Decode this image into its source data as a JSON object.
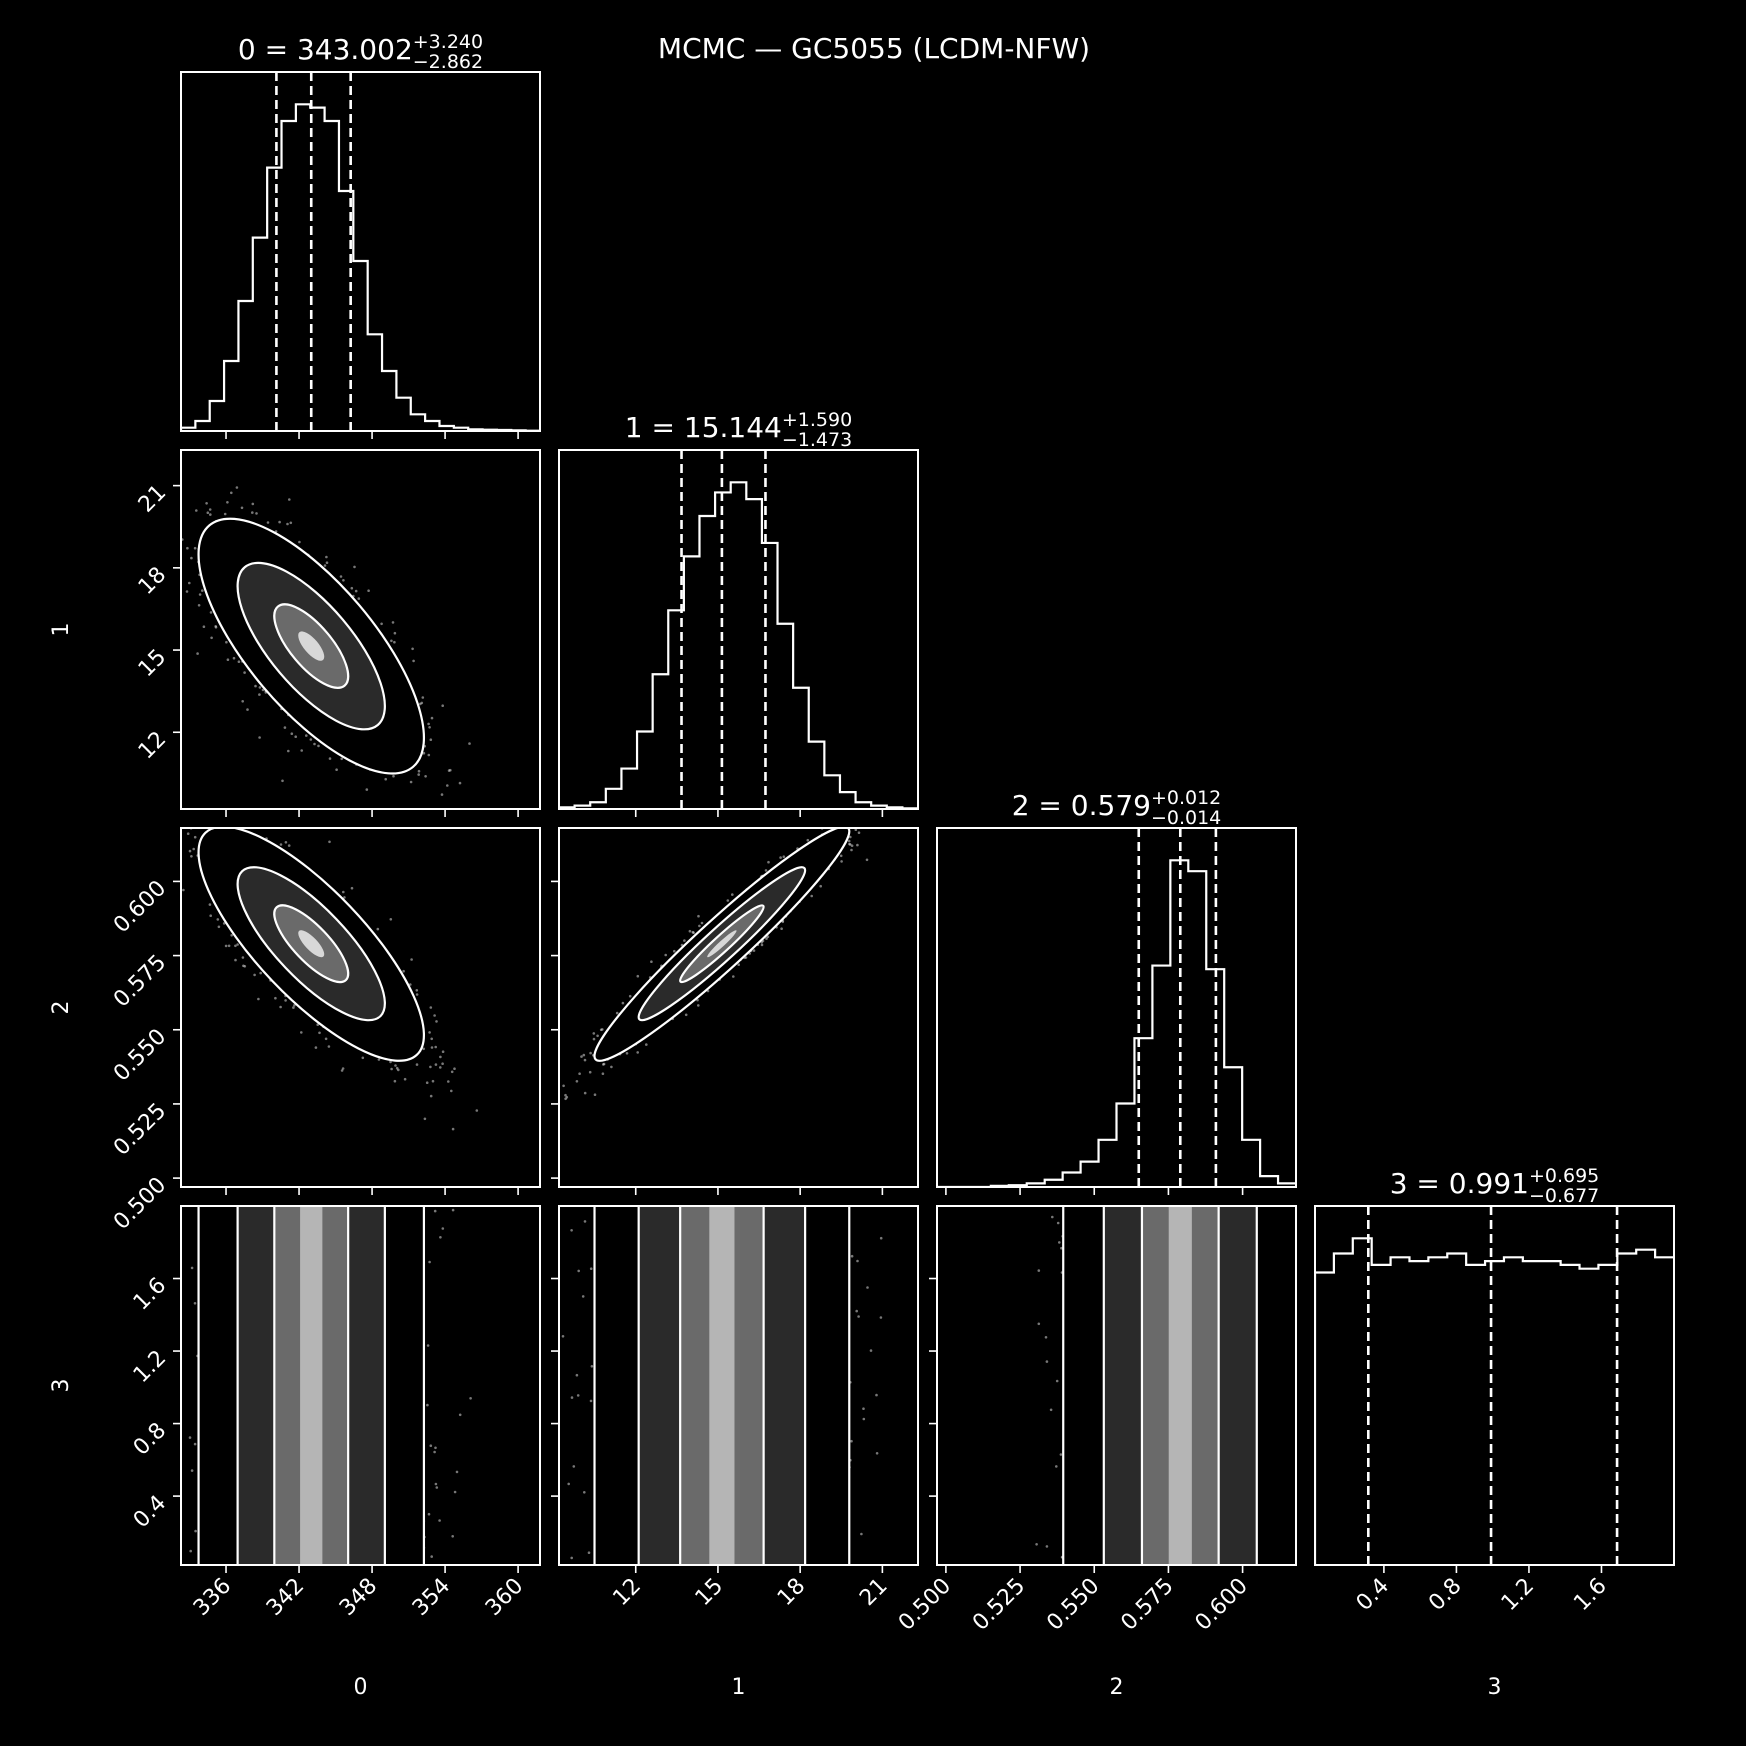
{
  "figure": {
    "title": "MCMC — GC5055 (LCDM-NFW)",
    "background": "#000000",
    "foreground": "#ffffff"
  },
  "chart_data": {
    "type": "corner",
    "title": "MCMC — GC5055 (LCDM-NFW)",
    "parameters": [
      {
        "label": "0",
        "median": 343.002,
        "plus": 3.24,
        "minus": 2.862,
        "median_text": "343.002",
        "plus_text": "+3.240",
        "minus_text": "−2.862",
        "range": [
          332.3,
          361.8
        ],
        "ticks": [
          336,
          342,
          348,
          354,
          360
        ],
        "tick_labels": [
          "336",
          "342",
          "348",
          "354",
          "360"
        ],
        "quantiles": [
          340.14,
          343.002,
          346.242
        ],
        "hist": [
          0.01,
          0.03,
          0.09,
          0.21,
          0.39,
          0.58,
          0.79,
          0.93,
          0.98,
          0.97,
          0.93,
          0.72,
          0.51,
          0.29,
          0.18,
          0.1,
          0.05,
          0.03,
          0.015,
          0.01,
          0.005,
          0.004,
          0.003,
          0.002,
          0.001
        ]
      },
      {
        "label": "1",
        "median": 15.144,
        "plus": 1.59,
        "minus": 1.473,
        "median_text": "15.144",
        "plus_text": "+1.590",
        "minus_text": "−1.473",
        "range": [
          9.2,
          22.3
        ],
        "ticks": [
          12,
          15,
          18,
          21
        ],
        "tick_labels": [
          "12",
          "15",
          "18",
          "21"
        ],
        "quantiles": [
          13.671,
          15.144,
          16.734
        ],
        "hist": [
          0.005,
          0.01,
          0.02,
          0.06,
          0.12,
          0.23,
          0.4,
          0.59,
          0.75,
          0.87,
          0.94,
          0.97,
          0.92,
          0.79,
          0.55,
          0.36,
          0.2,
          0.1,
          0.05,
          0.02,
          0.01,
          0.005,
          0.002
        ]
      },
      {
        "label": "2",
        "median": 0.579,
        "plus": 0.012,
        "minus": 0.014,
        "median_text": "0.579",
        "plus_text": "+0.012",
        "minus_text": "−0.014",
        "range": [
          0.497,
          0.618
        ],
        "ticks": [
          0.5,
          0.525,
          0.55,
          0.575,
          0.6
        ],
        "tick_labels": [
          "0.500",
          "0.525",
          "0.550",
          "0.575",
          "0.600"
        ],
        "quantiles": [
          0.565,
          0.579,
          0.591
        ],
        "hist": [
          0.0,
          0.0,
          0.0,
          0.003,
          0.005,
          0.01,
          0.02,
          0.04,
          0.07,
          0.13,
          0.23,
          0.41,
          0.61,
          0.9,
          0.87,
          0.6,
          0.33,
          0.13,
          0.03,
          0.01
        ]
      },
      {
        "label": "3",
        "median": 0.991,
        "plus": 0.695,
        "minus": 0.677,
        "median_text": "0.991",
        "plus_text": "+0.695",
        "minus_text": "−0.677",
        "range": [
          0.02,
          2.0
        ],
        "ticks": [
          0.4,
          0.8,
          1.2,
          1.6
        ],
        "tick_labels": [
          "0.4",
          "0.8",
          "1.2",
          "1.6"
        ],
        "quantiles": [
          0.314,
          0.991,
          1.686
        ],
        "hist": [
          0.77,
          0.82,
          0.86,
          0.79,
          0.81,
          0.8,
          0.81,
          0.82,
          0.79,
          0.8,
          0.81,
          0.8,
          0.8,
          0.79,
          0.78,
          0.79,
          0.82,
          0.83,
          0.81
        ]
      }
    ],
    "correlations": [
      {
        "x": 0,
        "y": 1,
        "rho": -0.72
      },
      {
        "x": 0,
        "y": 2,
        "rho": -0.78
      },
      {
        "x": 1,
        "y": 2,
        "rho": 0.96
      },
      {
        "x": 0,
        "y": 3,
        "rho": 0.0
      },
      {
        "x": 1,
        "y": 3,
        "rho": 0.0
      },
      {
        "x": 2,
        "y": 3,
        "rho": 0.0
      }
    ],
    "contour_levels": [
      0.39,
      0.86,
      0.99
    ],
    "grid": false,
    "legend": "none"
  }
}
